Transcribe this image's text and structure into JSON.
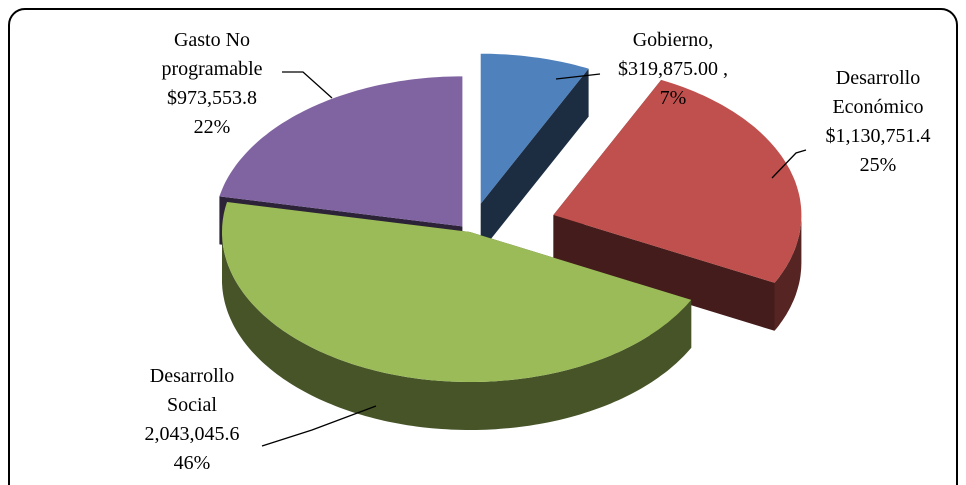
{
  "chart_data": {
    "type": "pie",
    "exploded": true,
    "three_d": true,
    "categories": [
      "Gobierno,",
      "Desarrollo Económico",
      "Desarrollo Social",
      "Gasto No programable"
    ],
    "values": [
      319875.0,
      1130751.4,
      2043045.6,
      973553.8
    ],
    "value_labels": [
      "$319,875.00 ,",
      "$1,130,751.4",
      "2,043,045.6",
      "$973,553.8"
    ],
    "percents": [
      7,
      25,
      46,
      22
    ],
    "percent_labels": [
      "7%",
      "25%",
      "46%",
      "22%"
    ],
    "colors": [
      "#4f81bd",
      "#c0504d",
      "#9bbb59",
      "#8064a2"
    ]
  }
}
